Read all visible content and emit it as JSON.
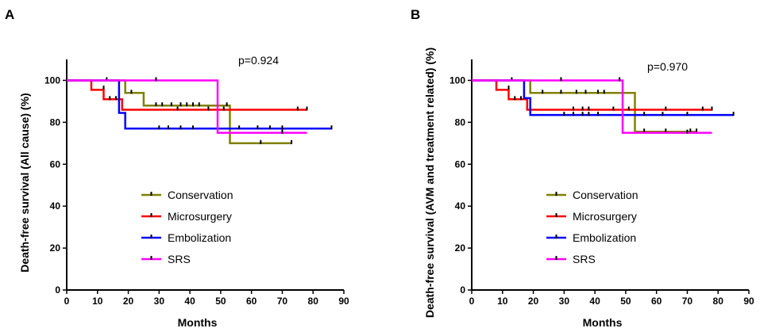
{
  "chart_data": [
    {
      "panel_letter": "A",
      "type": "line",
      "title": "",
      "xlabel": "Months",
      "ylabel": "Death-free survival (All cause) (%)",
      "xlim": [
        0,
        90
      ],
      "ylim": [
        0,
        110
      ],
      "xticks": [
        0,
        10,
        20,
        30,
        40,
        50,
        60,
        70,
        80,
        90
      ],
      "yticks": [
        0,
        20,
        40,
        60,
        80,
        100
      ],
      "grid": false,
      "annotation": "p=0.924",
      "legend_position": "bottom-center",
      "series": [
        {
          "name": "Conservation",
          "color": "#808000",
          "steps": [
            [
              0,
              100
            ],
            [
              19,
              100
            ],
            [
              19,
              94
            ],
            [
              25,
              94
            ],
            [
              25,
              88
            ],
            [
              53,
              88
            ],
            [
              53,
              70
            ],
            [
              73,
              70
            ]
          ],
          "censors": [
            [
              21,
              94
            ],
            [
              29,
              88
            ],
            [
              31,
              88
            ],
            [
              34,
              88
            ],
            [
              37,
              88
            ],
            [
              39,
              88
            ],
            [
              41,
              88
            ],
            [
              43,
              88
            ],
            [
              49,
              88
            ],
            [
              52,
              88
            ],
            [
              63,
              70
            ],
            [
              73,
              70
            ]
          ]
        },
        {
          "name": "Microsurgery",
          "color": "#ff0000",
          "steps": [
            [
              0,
              100
            ],
            [
              8,
              100
            ],
            [
              8,
              95.5
            ],
            [
              12,
              95.5
            ],
            [
              12,
              91
            ],
            [
              18,
              91
            ],
            [
              18,
              86
            ],
            [
              78,
              86
            ]
          ],
          "censors": [
            [
              12,
              96
            ],
            [
              14,
              91
            ],
            [
              16,
              91
            ],
            [
              36,
              86
            ],
            [
              46,
              86
            ],
            [
              51,
              86
            ],
            [
              75,
              86
            ],
            [
              78,
              86
            ]
          ]
        },
        {
          "name": "Embolization",
          "color": "#0000ff",
          "steps": [
            [
              0,
              100
            ],
            [
              17,
              100
            ],
            [
              17,
              84.5
            ],
            [
              19,
              84.5
            ],
            [
              19,
              77
            ],
            [
              86,
              77
            ]
          ],
          "censors": [
            [
              13,
              100
            ],
            [
              30,
              77
            ],
            [
              33,
              77
            ],
            [
              37,
              77
            ],
            [
              41,
              77
            ],
            [
              56,
              77
            ],
            [
              62,
              77
            ],
            [
              66,
              77
            ],
            [
              70,
              77
            ],
            [
              86,
              77
            ]
          ]
        },
        {
          "name": "SRS",
          "color": "#ff00ff",
          "steps": [
            [
              0,
              100
            ],
            [
              49,
              100
            ],
            [
              49,
              75
            ],
            [
              78,
              75
            ]
          ],
          "censors": [
            [
              29,
              100
            ],
            [
              70,
              75
            ]
          ]
        }
      ]
    },
    {
      "panel_letter": "B",
      "type": "line",
      "title": "",
      "xlabel": "Months",
      "ylabel": "Death-free survival (AVM and treatment related) (%)",
      "xlim": [
        0,
        90
      ],
      "ylim": [
        0,
        110
      ],
      "xticks": [
        0,
        10,
        20,
        30,
        40,
        50,
        60,
        70,
        80,
        90
      ],
      "yticks": [
        0,
        20,
        40,
        60,
        80,
        100
      ],
      "grid": false,
      "annotation": "p=0.970",
      "legend_position": "bottom-center",
      "series": [
        {
          "name": "Conservation",
          "color": "#808000",
          "steps": [
            [
              0,
              100
            ],
            [
              19,
              100
            ],
            [
              19,
              94
            ],
            [
              53,
              94
            ],
            [
              53,
              75.5
            ],
            [
              73,
              75.5
            ]
          ],
          "censors": [
            [
              23,
              94
            ],
            [
              29,
              94
            ],
            [
              34,
              94
            ],
            [
              37,
              94
            ],
            [
              41,
              94
            ],
            [
              43,
              94
            ],
            [
              49,
              94
            ],
            [
              56,
              75.5
            ],
            [
              63,
              75.5
            ],
            [
              71,
              75.5
            ],
            [
              73,
              75.5
            ]
          ]
        },
        {
          "name": "Microsurgery",
          "color": "#ff0000",
          "steps": [
            [
              0,
              100
            ],
            [
              8,
              100
            ],
            [
              8,
              95.5
            ],
            [
              12,
              95.5
            ],
            [
              12,
              91
            ],
            [
              18,
              91
            ],
            [
              18,
              86
            ],
            [
              78,
              86
            ]
          ],
          "censors": [
            [
              12,
              96
            ],
            [
              14,
              91
            ],
            [
              16,
              91
            ],
            [
              33,
              86
            ],
            [
              36,
              86
            ],
            [
              38,
              86
            ],
            [
              46,
              86
            ],
            [
              51,
              86
            ],
            [
              63,
              86
            ],
            [
              75,
              86
            ],
            [
              78,
              86
            ]
          ]
        },
        {
          "name": "Embolization",
          "color": "#0000ff",
          "steps": [
            [
              0,
              100
            ],
            [
              17,
              100
            ],
            [
              17,
              91.5
            ],
            [
              19,
              91.5
            ],
            [
              19,
              83.5
            ],
            [
              85,
              83.5
            ]
          ],
          "censors": [
            [
              13,
              100
            ],
            [
              30,
              83.5
            ],
            [
              33,
              83.5
            ],
            [
              36,
              83.5
            ],
            [
              38,
              83.5
            ],
            [
              41,
              83.5
            ],
            [
              56,
              83.5
            ],
            [
              62,
              83.5
            ],
            [
              70,
              83.5
            ],
            [
              85,
              83.5
            ]
          ]
        },
        {
          "name": "SRS",
          "color": "#ff00ff",
          "steps": [
            [
              0,
              100
            ],
            [
              49,
              100
            ],
            [
              49,
              75
            ],
            [
              78,
              75
            ]
          ],
          "censors": [
            [
              29,
              100
            ],
            [
              48,
              100
            ],
            [
              70,
              75
            ]
          ]
        }
      ]
    }
  ]
}
